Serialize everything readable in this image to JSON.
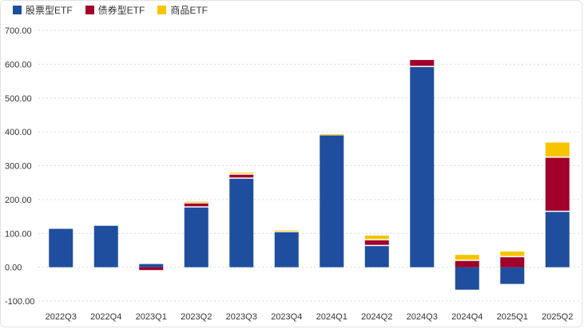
{
  "chart_data": {
    "type": "bar",
    "stacked": true,
    "categories": [
      "2022Q3",
      "2022Q4",
      "2023Q1",
      "2023Q2",
      "2023Q3",
      "2023Q4",
      "2024Q1",
      "2024Q2",
      "2024Q3",
      "2024Q4",
      "2025Q1",
      "2025Q2"
    ],
    "series": [
      {
        "name": "股票型ETF",
        "color": "#1f4e9e",
        "values": [
          117,
          126,
          13,
          180,
          265,
          107,
          393,
          66,
          595,
          -70,
          -53,
          167
        ]
      },
      {
        "name": "债券型ETF",
        "color": "#a0002a",
        "values": [
          0,
          0,
          -12,
          12,
          12,
          0,
          0,
          17,
          21,
          22,
          33,
          160
        ]
      },
      {
        "name": "商品ETF",
        "color": "#f5c500",
        "values": [
          0,
          0,
          0,
          5,
          6,
          5,
          3,
          14,
          0,
          18,
          17,
          45
        ]
      }
    ],
    "yticks": [
      "700.00",
      "600.00",
      "500.00",
      "400.00",
      "300.00",
      "200.00",
      "100.00",
      "0.00",
      "-100.00"
    ],
    "ylim": [
      -100,
      700
    ],
    "grid": true,
    "legend_position": "top-left"
  }
}
